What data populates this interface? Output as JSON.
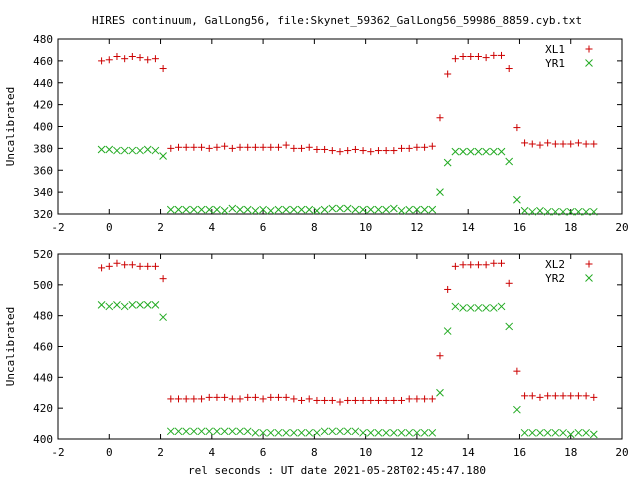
{
  "title": "HIRES continuum, GalLong56, file:Skynet_59362_GalLong56_59986_8859.cyb.txt",
  "xlabel": "rel seconds : UT date 2021-05-28T02:45:47.180",
  "colors": {
    "series1": "#cc0000",
    "series2": "#22aa22",
    "axis": "#000000"
  },
  "chart_data": [
    {
      "type": "scatter",
      "title": "HIRES continuum, GalLong56, file:Skynet_59362_GalLong56_59986_8859.cyb.txt",
      "xlabel": "",
      "ylabel": "Uncalibrated",
      "xlim": [
        -2,
        20
      ],
      "ylim": [
        320,
        480
      ],
      "xticks": [
        -2,
        0,
        2,
        4,
        6,
        8,
        10,
        12,
        14,
        16,
        18,
        20
      ],
      "yticks": [
        320,
        340,
        360,
        380,
        400,
        420,
        440,
        460,
        480
      ],
      "grid": false,
      "legend": "top-right",
      "series": [
        {
          "name": "XL1",
          "marker": "plus",
          "points": [
            [
              -0.3,
              460
            ],
            [
              0,
              461
            ],
            [
              0.3,
              464
            ],
            [
              0.6,
              462
            ],
            [
              0.9,
              464
            ],
            [
              1.2,
              463
            ],
            [
              1.5,
              461
            ],
            [
              1.8,
              462
            ],
            [
              2.1,
              453
            ],
            [
              2.4,
              380
            ],
            [
              2.7,
              381
            ],
            [
              3.0,
              381
            ],
            [
              3.3,
              381
            ],
            [
              3.6,
              381
            ],
            [
              3.9,
              380
            ],
            [
              4.2,
              381
            ],
            [
              4.5,
              382
            ],
            [
              4.8,
              380
            ],
            [
              5.1,
              381
            ],
            [
              5.4,
              381
            ],
            [
              5.7,
              381
            ],
            [
              6.0,
              381
            ],
            [
              6.3,
              381
            ],
            [
              6.6,
              381
            ],
            [
              6.9,
              383
            ],
            [
              7.2,
              380
            ],
            [
              7.5,
              380
            ],
            [
              7.8,
              381
            ],
            [
              8.1,
              379
            ],
            [
              8.4,
              379
            ],
            [
              8.7,
              378
            ],
            [
              9.0,
              377
            ],
            [
              9.3,
              378
            ],
            [
              9.6,
              379
            ],
            [
              9.9,
              378
            ],
            [
              10.2,
              377
            ],
            [
              10.5,
              378
            ],
            [
              10.8,
              378
            ],
            [
              11.1,
              378
            ],
            [
              11.4,
              380
            ],
            [
              11.7,
              380
            ],
            [
              12.0,
              381
            ],
            [
              12.3,
              381
            ],
            [
              12.6,
              382
            ],
            [
              12.9,
              408
            ],
            [
              13.2,
              448
            ],
            [
              13.5,
              462
            ],
            [
              13.8,
              464
            ],
            [
              14.1,
              464
            ],
            [
              14.4,
              464
            ],
            [
              14.7,
              463
            ],
            [
              15.0,
              465
            ],
            [
              15.3,
              465
            ],
            [
              15.6,
              453
            ],
            [
              15.9,
              399
            ],
            [
              16.2,
              385
            ],
            [
              16.5,
              384
            ],
            [
              16.8,
              383
            ],
            [
              17.1,
              385
            ],
            [
              17.4,
              384
            ],
            [
              17.7,
              384
            ],
            [
              18.0,
              384
            ],
            [
              18.3,
              385
            ],
            [
              18.6,
              384
            ],
            [
              18.9,
              384
            ]
          ]
        },
        {
          "name": "YR1",
          "marker": "cross",
          "points": [
            [
              -0.3,
              379
            ],
            [
              0,
              379
            ],
            [
              0.3,
              378
            ],
            [
              0.6,
              378
            ],
            [
              0.9,
              378
            ],
            [
              1.2,
              378
            ],
            [
              1.5,
              379
            ],
            [
              1.8,
              378
            ],
            [
              2.1,
              373
            ],
            [
              2.4,
              324
            ],
            [
              2.7,
              324
            ],
            [
              3.0,
              324
            ],
            [
              3.3,
              324
            ],
            [
              3.6,
              324
            ],
            [
              3.9,
              324
            ],
            [
              4.2,
              324
            ],
            [
              4.5,
              323
            ],
            [
              4.8,
              325
            ],
            [
              5.1,
              324
            ],
            [
              5.4,
              324
            ],
            [
              5.7,
              323
            ],
            [
              6.0,
              324
            ],
            [
              6.3,
              323
            ],
            [
              6.6,
              324
            ],
            [
              6.9,
              324
            ],
            [
              7.2,
              324
            ],
            [
              7.5,
              324
            ],
            [
              7.8,
              324
            ],
            [
              8.1,
              323
            ],
            [
              8.4,
              324
            ],
            [
              8.7,
              325
            ],
            [
              9.0,
              325
            ],
            [
              9.3,
              325
            ],
            [
              9.6,
              324
            ],
            [
              9.9,
              324
            ],
            [
              10.2,
              324
            ],
            [
              10.5,
              324
            ],
            [
              10.8,
              324
            ],
            [
              11.1,
              325
            ],
            [
              11.4,
              323
            ],
            [
              11.7,
              324
            ],
            [
              12.0,
              324
            ],
            [
              12.3,
              324
            ],
            [
              12.6,
              324
            ],
            [
              12.9,
              340
            ],
            [
              13.2,
              367
            ],
            [
              13.5,
              377
            ],
            [
              13.8,
              377
            ],
            [
              14.1,
              377
            ],
            [
              14.4,
              377
            ],
            [
              14.7,
              377
            ],
            [
              15.0,
              377
            ],
            [
              15.3,
              377
            ],
            [
              15.6,
              368
            ],
            [
              15.9,
              333
            ],
            [
              16.2,
              323
            ],
            [
              16.5,
              322
            ],
            [
              16.8,
              323
            ],
            [
              17.1,
              322
            ],
            [
              17.4,
              322
            ],
            [
              17.7,
              322
            ],
            [
              18.0,
              322
            ],
            [
              18.3,
              322
            ],
            [
              18.6,
              322
            ],
            [
              18.9,
              322
            ]
          ]
        }
      ]
    },
    {
      "type": "scatter",
      "title": "",
      "xlabel": "rel seconds : UT date 2021-05-28T02:45:47.180",
      "ylabel": "Uncalibrated",
      "xlim": [
        -2,
        20
      ],
      "ylim": [
        400,
        520
      ],
      "xticks": [
        -2,
        0,
        2,
        4,
        6,
        8,
        10,
        12,
        14,
        16,
        18,
        20
      ],
      "yticks": [
        400,
        420,
        440,
        460,
        480,
        500,
        520
      ],
      "grid": false,
      "legend": "top-right",
      "series": [
        {
          "name": "XL2",
          "marker": "plus",
          "points": [
            [
              -0.3,
              511
            ],
            [
              0,
              512
            ],
            [
              0.3,
              514
            ],
            [
              0.6,
              513
            ],
            [
              0.9,
              513
            ],
            [
              1.2,
              512
            ],
            [
              1.5,
              512
            ],
            [
              1.8,
              512
            ],
            [
              2.1,
              504
            ],
            [
              2.4,
              426
            ],
            [
              2.7,
              426
            ],
            [
              3.0,
              426
            ],
            [
              3.3,
              426
            ],
            [
              3.6,
              426
            ],
            [
              3.9,
              427
            ],
            [
              4.2,
              427
            ],
            [
              4.5,
              427
            ],
            [
              4.8,
              426
            ],
            [
              5.1,
              426
            ],
            [
              5.4,
              427
            ],
            [
              5.7,
              427
            ],
            [
              6.0,
              426
            ],
            [
              6.3,
              427
            ],
            [
              6.6,
              427
            ],
            [
              6.9,
              427
            ],
            [
              7.2,
              426
            ],
            [
              7.5,
              425
            ],
            [
              7.8,
              426
            ],
            [
              8.1,
              425
            ],
            [
              8.4,
              425
            ],
            [
              8.7,
              425
            ],
            [
              9.0,
              424
            ],
            [
              9.3,
              425
            ],
            [
              9.6,
              425
            ],
            [
              9.9,
              425
            ],
            [
              10.2,
              425
            ],
            [
              10.5,
              425
            ],
            [
              10.8,
              425
            ],
            [
              11.1,
              425
            ],
            [
              11.4,
              425
            ],
            [
              11.7,
              426
            ],
            [
              12.0,
              426
            ],
            [
              12.3,
              426
            ],
            [
              12.6,
              426
            ],
            [
              12.9,
              454
            ],
            [
              13.2,
              497
            ],
            [
              13.5,
              512
            ],
            [
              13.8,
              513
            ],
            [
              14.1,
              513
            ],
            [
              14.4,
              513
            ],
            [
              14.7,
              513
            ],
            [
              15.0,
              514
            ],
            [
              15.3,
              514
            ],
            [
              15.6,
              501
            ],
            [
              15.9,
              444
            ],
            [
              16.2,
              428
            ],
            [
              16.5,
              428
            ],
            [
              16.8,
              427
            ],
            [
              17.1,
              428
            ],
            [
              17.4,
              428
            ],
            [
              17.7,
              428
            ],
            [
              18.0,
              428
            ],
            [
              18.3,
              428
            ],
            [
              18.6,
              428
            ],
            [
              18.9,
              427
            ]
          ]
        },
        {
          "name": "YR2",
          "marker": "cross",
          "points": [
            [
              -0.3,
              487
            ],
            [
              0,
              486
            ],
            [
              0.3,
              487
            ],
            [
              0.6,
              486
            ],
            [
              0.9,
              487
            ],
            [
              1.2,
              487
            ],
            [
              1.5,
              487
            ],
            [
              1.8,
              487
            ],
            [
              2.1,
              479
            ],
            [
              2.4,
              405
            ],
            [
              2.7,
              405
            ],
            [
              3.0,
              405
            ],
            [
              3.3,
              405
            ],
            [
              3.6,
              405
            ],
            [
              3.9,
              405
            ],
            [
              4.2,
              405
            ],
            [
              4.5,
              405
            ],
            [
              4.8,
              405
            ],
            [
              5.1,
              405
            ],
            [
              5.4,
              405
            ],
            [
              5.7,
              404
            ],
            [
              6.0,
              404
            ],
            [
              6.3,
              404
            ],
            [
              6.6,
              404
            ],
            [
              6.9,
              404
            ],
            [
              7.2,
              404
            ],
            [
              7.5,
              404
            ],
            [
              7.8,
              404
            ],
            [
              8.1,
              404
            ],
            [
              8.4,
              405
            ],
            [
              8.7,
              405
            ],
            [
              9.0,
              405
            ],
            [
              9.3,
              405
            ],
            [
              9.6,
              405
            ],
            [
              9.9,
              404
            ],
            [
              10.2,
              404
            ],
            [
              10.5,
              404
            ],
            [
              10.8,
              404
            ],
            [
              11.1,
              404
            ],
            [
              11.4,
              404
            ],
            [
              11.7,
              404
            ],
            [
              12.0,
              404
            ],
            [
              12.3,
              404
            ],
            [
              12.6,
              404
            ],
            [
              12.9,
              430
            ],
            [
              13.2,
              470
            ],
            [
              13.5,
              486
            ],
            [
              13.8,
              485
            ],
            [
              14.1,
              485
            ],
            [
              14.4,
              485
            ],
            [
              14.7,
              485
            ],
            [
              15.0,
              485
            ],
            [
              15.3,
              486
            ],
            [
              15.6,
              473
            ],
            [
              15.9,
              419
            ],
            [
              16.2,
              404
            ],
            [
              16.5,
              404
            ],
            [
              16.8,
              404
            ],
            [
              17.1,
              404
            ],
            [
              17.4,
              404
            ],
            [
              17.7,
              404
            ],
            [
              18.0,
              403
            ],
            [
              18.3,
              404
            ],
            [
              18.6,
              404
            ],
            [
              18.9,
              403
            ]
          ]
        }
      ]
    }
  ]
}
